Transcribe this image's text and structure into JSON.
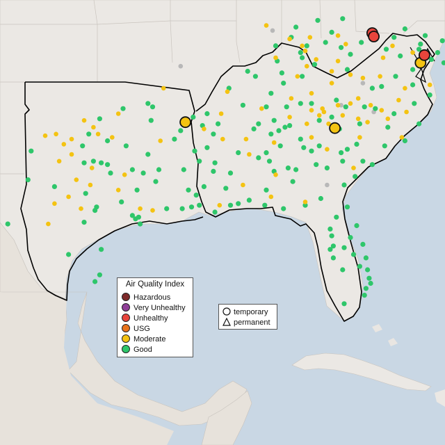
{
  "legend": {
    "title": "Air Quality Index",
    "items": [
      {
        "label": "Hazardous",
        "color": "#7e2a2a"
      },
      {
        "label": "Very Unhealthy",
        "color": "#8f3f97"
      },
      {
        "label": "Unhealthy",
        "color": "#e8453c"
      },
      {
        "label": "USG",
        "color": "#e8731c"
      },
      {
        "label": "Moderate",
        "color": "#f4c312"
      },
      {
        "label": "Good",
        "color": "#2ec66a"
      }
    ]
  },
  "marker_legend": {
    "items": [
      {
        "label": "temporary",
        "shape": "circle"
      },
      {
        "label": "permanent",
        "shape": "triangle"
      }
    ]
  },
  "colors": {
    "water": "#c9d7e4",
    "land": "#ebe8e4",
    "no_data": "#b8b8b8",
    "boundary": "#000000"
  },
  "sites": {
    "unhealthy_temporary": [
      [
        -80.0,
        40.55
      ],
      [
        -79.9,
        40.35
      ],
      [
        -76.65,
        39.25
      ]
    ],
    "moderate_temporary": [
      [
        -92.0,
        35.3
      ],
      [
        -82.4,
        34.95
      ],
      [
        -76.9,
        38.8
      ]
    ],
    "moderate": [
      [
        -101.0,
        34.5
      ],
      [
        -100.3,
        34.6
      ],
      [
        -99.8,
        34.0
      ],
      [
        -99.3,
        34.3
      ],
      [
        -97.9,
        35.0
      ],
      [
        -96.7,
        34.4
      ],
      [
        -98.5,
        35.4
      ],
      [
        -96.3,
        35.8
      ],
      [
        -97.6,
        34.6
      ],
      [
        -100.1,
        33.0
      ],
      [
        -99.3,
        33.4
      ],
      [
        -98.0,
        32.6
      ],
      [
        -99.0,
        31.9
      ],
      [
        -98.1,
        31.6
      ],
      [
        -100.4,
        30.5
      ],
      [
        -95.9,
        32.2
      ],
      [
        -96.3,
        31.3
      ],
      [
        -94.1,
        30.1
      ],
      [
        -94.9,
        30.2
      ],
      [
        -98.7,
        30.2
      ],
      [
        -86.8,
        41.0
      ],
      [
        -84.5,
        39.8
      ],
      [
        -85.3,
        40.2
      ],
      [
        -84.0,
        40.3
      ],
      [
        -82.2,
        40.4
      ],
      [
        -84.3,
        39.5
      ],
      [
        -83.6,
        39.0
      ],
      [
        -84.2,
        38.6
      ],
      [
        -82.6,
        38.3
      ],
      [
        -84.8,
        38.0
      ],
      [
        -83.9,
        36.0
      ],
      [
        -83.2,
        36.1
      ],
      [
        -83.4,
        35.7
      ],
      [
        -82.2,
        36.3
      ],
      [
        -81.4,
        36.4
      ],
      [
        -80.9,
        36.7
      ],
      [
        -80.1,
        36.3
      ],
      [
        -79.4,
        36.0
      ],
      [
        -80.3,
        35.3
      ],
      [
        -80.9,
        35.5
      ],
      [
        -82.8,
        35.2
      ],
      [
        -81.9,
        35.7
      ],
      [
        -84.2,
        35.2
      ],
      [
        -85.3,
        35.6
      ],
      [
        -86.3,
        34.1
      ],
      [
        -88.1,
        34.3
      ],
      [
        -89.7,
        35.8
      ],
      [
        -90.8,
        34.9
      ],
      [
        -93.6,
        34.2
      ],
      [
        -82.9,
        33.7
      ],
      [
        -79.0,
        35.5
      ],
      [
        -77.8,
        35.9
      ],
      [
        -77.9,
        37.3
      ],
      [
        -76.3,
        37.5
      ],
      [
        -80.6,
        37.9
      ],
      [
        -81.4,
        38.1
      ],
      [
        -79.5,
        38.0
      ],
      [
        -74.9,
        40.4
      ],
      [
        -77.4,
        39.4
      ],
      [
        -79.3,
        39.1
      ],
      [
        -88.3,
        31.6
      ],
      [
        -86.5,
        30.9
      ],
      [
        -87.9,
        33.4
      ],
      [
        -89.6,
        34.3
      ],
      [
        -87.1,
        36.1
      ],
      [
        -89.3,
        37.1
      ],
      [
        -82.6,
        37.6
      ],
      [
        -80.8,
        34.4
      ],
      [
        -78.1,
        34.4
      ],
      [
        -93.4,
        37.3
      ],
      [
        -100.8,
        29.3
      ],
      [
        -99.5,
        30.9
      ],
      [
        -82.2,
        38.9
      ],
      [
        -89.8,
        30.4
      ],
      [
        -86.2,
        32.2
      ],
      [
        -84.3,
        30.6
      ],
      [
        -83.9,
        34.4
      ],
      [
        -81.2,
        32.6
      ],
      [
        -78.3,
        36.6
      ],
      [
        -78.7,
        39.8
      ],
      [
        -81.7,
        39.9
      ],
      [
        -86.2,
        39.1
      ],
      [
        -85.2,
        36.7
      ],
      [
        -83.1,
        35.9
      ],
      [
        -83.9,
        37.0
      ]
    ],
    "good": [
      [
        -90.6,
        35.8
      ],
      [
        -90.9,
        35.1
      ],
      [
        -90.2,
        34.6
      ],
      [
        -90.6,
        33.8
      ],
      [
        -91.1,
        33.0
      ],
      [
        -90.2,
        32.4
      ],
      [
        -90.8,
        31.5
      ],
      [
        -91.3,
        31.0
      ],
      [
        -89.4,
        31.4
      ],
      [
        -88.6,
        33.5
      ],
      [
        -87.6,
        34.9
      ],
      [
        -86.8,
        33.5
      ],
      [
        -86.6,
        33.0
      ],
      [
        -85.9,
        33.9
      ],
      [
        -86.0,
        34.8
      ],
      [
        -86.3,
        32.4
      ],
      [
        -85.1,
        31.8
      ],
      [
        -87.9,
        30.7
      ],
      [
        -88.6,
        30.5
      ],
      [
        -89.1,
        30.4
      ],
      [
        -90.1,
        30.0
      ],
      [
        -91.1,
        30.4
      ],
      [
        -91.6,
        30.3
      ],
      [
        -92.2,
        30.2
      ],
      [
        -93.2,
        30.2
      ],
      [
        -93.7,
        32.5
      ],
      [
        -92.1,
        32.5
      ],
      [
        -91.8,
        31.3
      ],
      [
        -94.7,
        32.3
      ],
      [
        -95.4,
        32.5
      ],
      [
        -97.0,
        32.8
      ],
      [
        -97.4,
        32.9
      ],
      [
        -96.8,
        32.3
      ],
      [
        -97.7,
        30.3
      ],
      [
        -97.8,
        30.1
      ],
      [
        -98.5,
        29.4
      ],
      [
        -95.4,
        29.8
      ],
      [
        -95.2,
        29.6
      ],
      [
        -95.0,
        29.7
      ],
      [
        -94.9,
        29.3
      ],
      [
        -97.4,
        27.8
      ],
      [
        -97.5,
        26.3
      ],
      [
        -99.5,
        27.5
      ],
      [
        -97.8,
        25.9
      ],
      [
        -101.9,
        33.6
      ],
      [
        -97.9,
        33.0
      ],
      [
        -98.4,
        31.1
      ],
      [
        -96.1,
        30.6
      ],
      [
        -93.9,
        31.8
      ],
      [
        -94.4,
        33.4
      ],
      [
        -92.3,
        34.8
      ],
      [
        -92.7,
        34.3
      ],
      [
        -91.4,
        33.6
      ],
      [
        -89.9,
        35.2
      ],
      [
        -88.3,
        36.3
      ],
      [
        -86.8,
        36.2
      ],
      [
        -85.6,
        35.0
      ],
      [
        -85.3,
        35.1
      ],
      [
        -84.6,
        34.3
      ],
      [
        -84.4,
        33.8
      ],
      [
        -83.9,
        33.6
      ],
      [
        -83.4,
        33.9
      ],
      [
        -82.0,
        33.5
      ],
      [
        -81.0,
        34.0
      ],
      [
        -80.0,
        32.8
      ],
      [
        -81.1,
        32.1
      ],
      [
        -81.8,
        31.6
      ],
      [
        -81.6,
        30.3
      ],
      [
        -82.3,
        29.7
      ],
      [
        -81.0,
        29.2
      ],
      [
        -82.5,
        28.0
      ],
      [
        -82.7,
        27.8
      ],
      [
        -81.4,
        28.5
      ],
      [
        -80.6,
        28.1
      ],
      [
        -81.9,
        26.6
      ],
      [
        -80.2,
        26.1
      ],
      [
        -80.1,
        25.8
      ],
      [
        -80.4,
        25.5
      ],
      [
        -81.8,
        24.6
      ],
      [
        -84.3,
        30.4
      ],
      [
        -85.7,
        30.2
      ],
      [
        -86.9,
        30.4
      ],
      [
        -83.6,
        32.8
      ],
      [
        -84.9,
        32.5
      ],
      [
        -82.9,
        32.6
      ],
      [
        -83.3,
        30.8
      ],
      [
        -82.5,
        27.3
      ],
      [
        -82.6,
        28.6
      ],
      [
        -81.2,
        27.5
      ],
      [
        -81.8,
        27.9
      ],
      [
        -80.5,
        25.1
      ],
      [
        -80.8,
        26.8
      ],
      [
        -82.7,
        29.0
      ],
      [
        -80.4,
        27.3
      ],
      [
        -80.3,
        26.6
      ],
      [
        -78.6,
        35.8
      ],
      [
        -79.8,
        36.1
      ],
      [
        -80.8,
        35.2
      ],
      [
        -82.6,
        35.6
      ],
      [
        -77.0,
        35.2
      ],
      [
        -77.9,
        34.2
      ],
      [
        -79.0,
        35.0
      ],
      [
        -77.3,
        36.4
      ],
      [
        -76.3,
        36.9
      ],
      [
        -77.4,
        37.5
      ],
      [
        -79.4,
        37.4
      ],
      [
        -80.0,
        37.3
      ],
      [
        -78.5,
        38.0
      ],
      [
        -77.1,
        38.9
      ],
      [
        -81.6,
        38.4
      ],
      [
        -80.7,
        40.0
      ],
      [
        -81.4,
        39.3
      ],
      [
        -82.0,
        39.7
      ],
      [
        -83.0,
        40.0
      ],
      [
        -84.2,
        39.8
      ],
      [
        -84.5,
        39.1
      ],
      [
        -85.8,
        38.2
      ],
      [
        -84.5,
        38.0
      ],
      [
        -84.6,
        39.4
      ],
      [
        -86.2,
        39.8
      ],
      [
        -87.5,
        38.0
      ],
      [
        -88.0,
        38.3
      ],
      [
        -89.2,
        37.3
      ],
      [
        -86.5,
        37.0
      ],
      [
        -85.7,
        37.6
      ],
      [
        -86.1,
        38.9
      ],
      [
        -83.7,
        38.7
      ],
      [
        -82.6,
        40.6
      ],
      [
        -84.9,
        40.9
      ],
      [
        -85.2,
        40.3
      ],
      [
        -83.5,
        41.3
      ],
      [
        -81.9,
        41.4
      ],
      [
        -80.2,
        40.6
      ],
      [
        -78.6,
        40.3
      ],
      [
        -77.9,
        40.8
      ],
      [
        -76.6,
        40.4
      ],
      [
        -75.5,
        40.1
      ],
      [
        -77.0,
        39.6
      ],
      [
        -76.2,
        39.0
      ],
      [
        -79.1,
        39.6
      ],
      [
        -77.4,
        38.4
      ],
      [
        -78.2,
        39.2
      ],
      [
        -75.4,
        38.8
      ],
      [
        -75.8,
        39.4
      ],
      [
        -76.9,
        39.9
      ],
      [
        -80.5,
        36.2
      ],
      [
        -81.7,
        36.2
      ],
      [
        -83.9,
        36.4
      ],
      [
        -84.6,
        36.4
      ],
      [
        -82.3,
        36.6
      ],
      [
        -85.5,
        36.2
      ],
      [
        -86.3,
        35.4
      ],
      [
        -87.3,
        35.2
      ],
      [
        -83.4,
        35.4
      ],
      [
        -82.1,
        34.9
      ],
      [
        -81.6,
        33.7
      ],
      [
        -79.2,
        33.9
      ],
      [
        -80.6,
        33.0
      ],
      [
        -81.9,
        33.0
      ],
      [
        -86.5,
        34.6
      ],
      [
        -87.3,
        33.2
      ],
      [
        -85.4,
        32.6
      ],
      [
        -86.8,
        31.3
      ],
      [
        -89.1,
        32.3
      ],
      [
        -90.1,
        32.9
      ],
      [
        -91.5,
        35.6
      ],
      [
        -94.1,
        36.2
      ],
      [
        -94.2,
        35.4
      ],
      [
        -94.4,
        36.4
      ],
      [
        -96.0,
        36.1
      ],
      [
        -97.5,
        35.5
      ],
      [
        -98.2,
        34.6
      ],
      [
        -97.0,
        34.2
      ],
      [
        -98.6,
        33.9
      ],
      [
        -98.5,
        32.9
      ],
      [
        -95.8,
        33.9
      ],
      [
        -95.1,
        31.3
      ],
      [
        -100.4,
        31.5
      ],
      [
        -102.1,
        31.9
      ],
      [
        -103.4,
        29.3
      ]
    ],
    "no_data": [
      [
        -86.4,
        40.7
      ],
      [
        -92.3,
        38.6
      ],
      [
        -82.0,
        36.3
      ],
      [
        -79.9,
        35.9
      ],
      [
        -82.9,
        31.6
      ],
      [
        -80.6,
        37.6
      ]
    ]
  }
}
